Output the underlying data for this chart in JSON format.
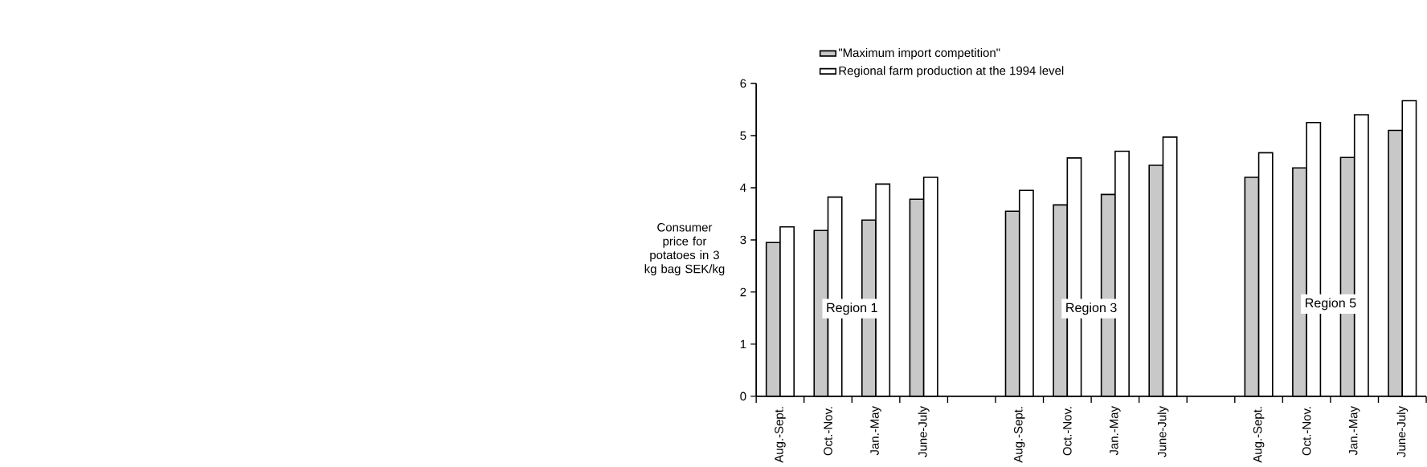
{
  "chart_data": {
    "type": "bar",
    "ylabel": "Consumer price for potatoes in 3 kg bag SEK/kg",
    "categories": [
      "Aug.-Sept.",
      "Oct.-Nov.",
      "Jan.-May",
      "June-July",
      null,
      "Aug.-Sept.",
      "Oct.-Nov.",
      "Jan.-May",
      "June-July",
      null,
      "Aug.-Sept.",
      "Oct.-Nov.",
      "Jan.-May",
      "June-July"
    ],
    "series": [
      {
        "name": "\"Maximum import competition\"",
        "color": "#c8c8c8",
        "values": [
          2.95,
          3.18,
          3.38,
          3.78,
          null,
          3.55,
          3.67,
          3.87,
          4.43,
          null,
          4.2,
          4.38,
          4.58,
          5.1
        ]
      },
      {
        "name": "Regional farm production at the 1994 level",
        "color": "#ffffff",
        "values": [
          3.25,
          3.82,
          4.07,
          4.2,
          null,
          3.95,
          4.57,
          4.7,
          4.97,
          null,
          4.67,
          5.25,
          5.4,
          5.67
        ]
      }
    ],
    "ylim": [
      0,
      6
    ],
    "yticks": [
      0,
      1,
      2,
      3,
      4,
      5,
      6
    ],
    "legend": "top",
    "grid": false,
    "annotations": [
      "Region 1",
      "Region 3",
      "Region 5"
    ]
  }
}
